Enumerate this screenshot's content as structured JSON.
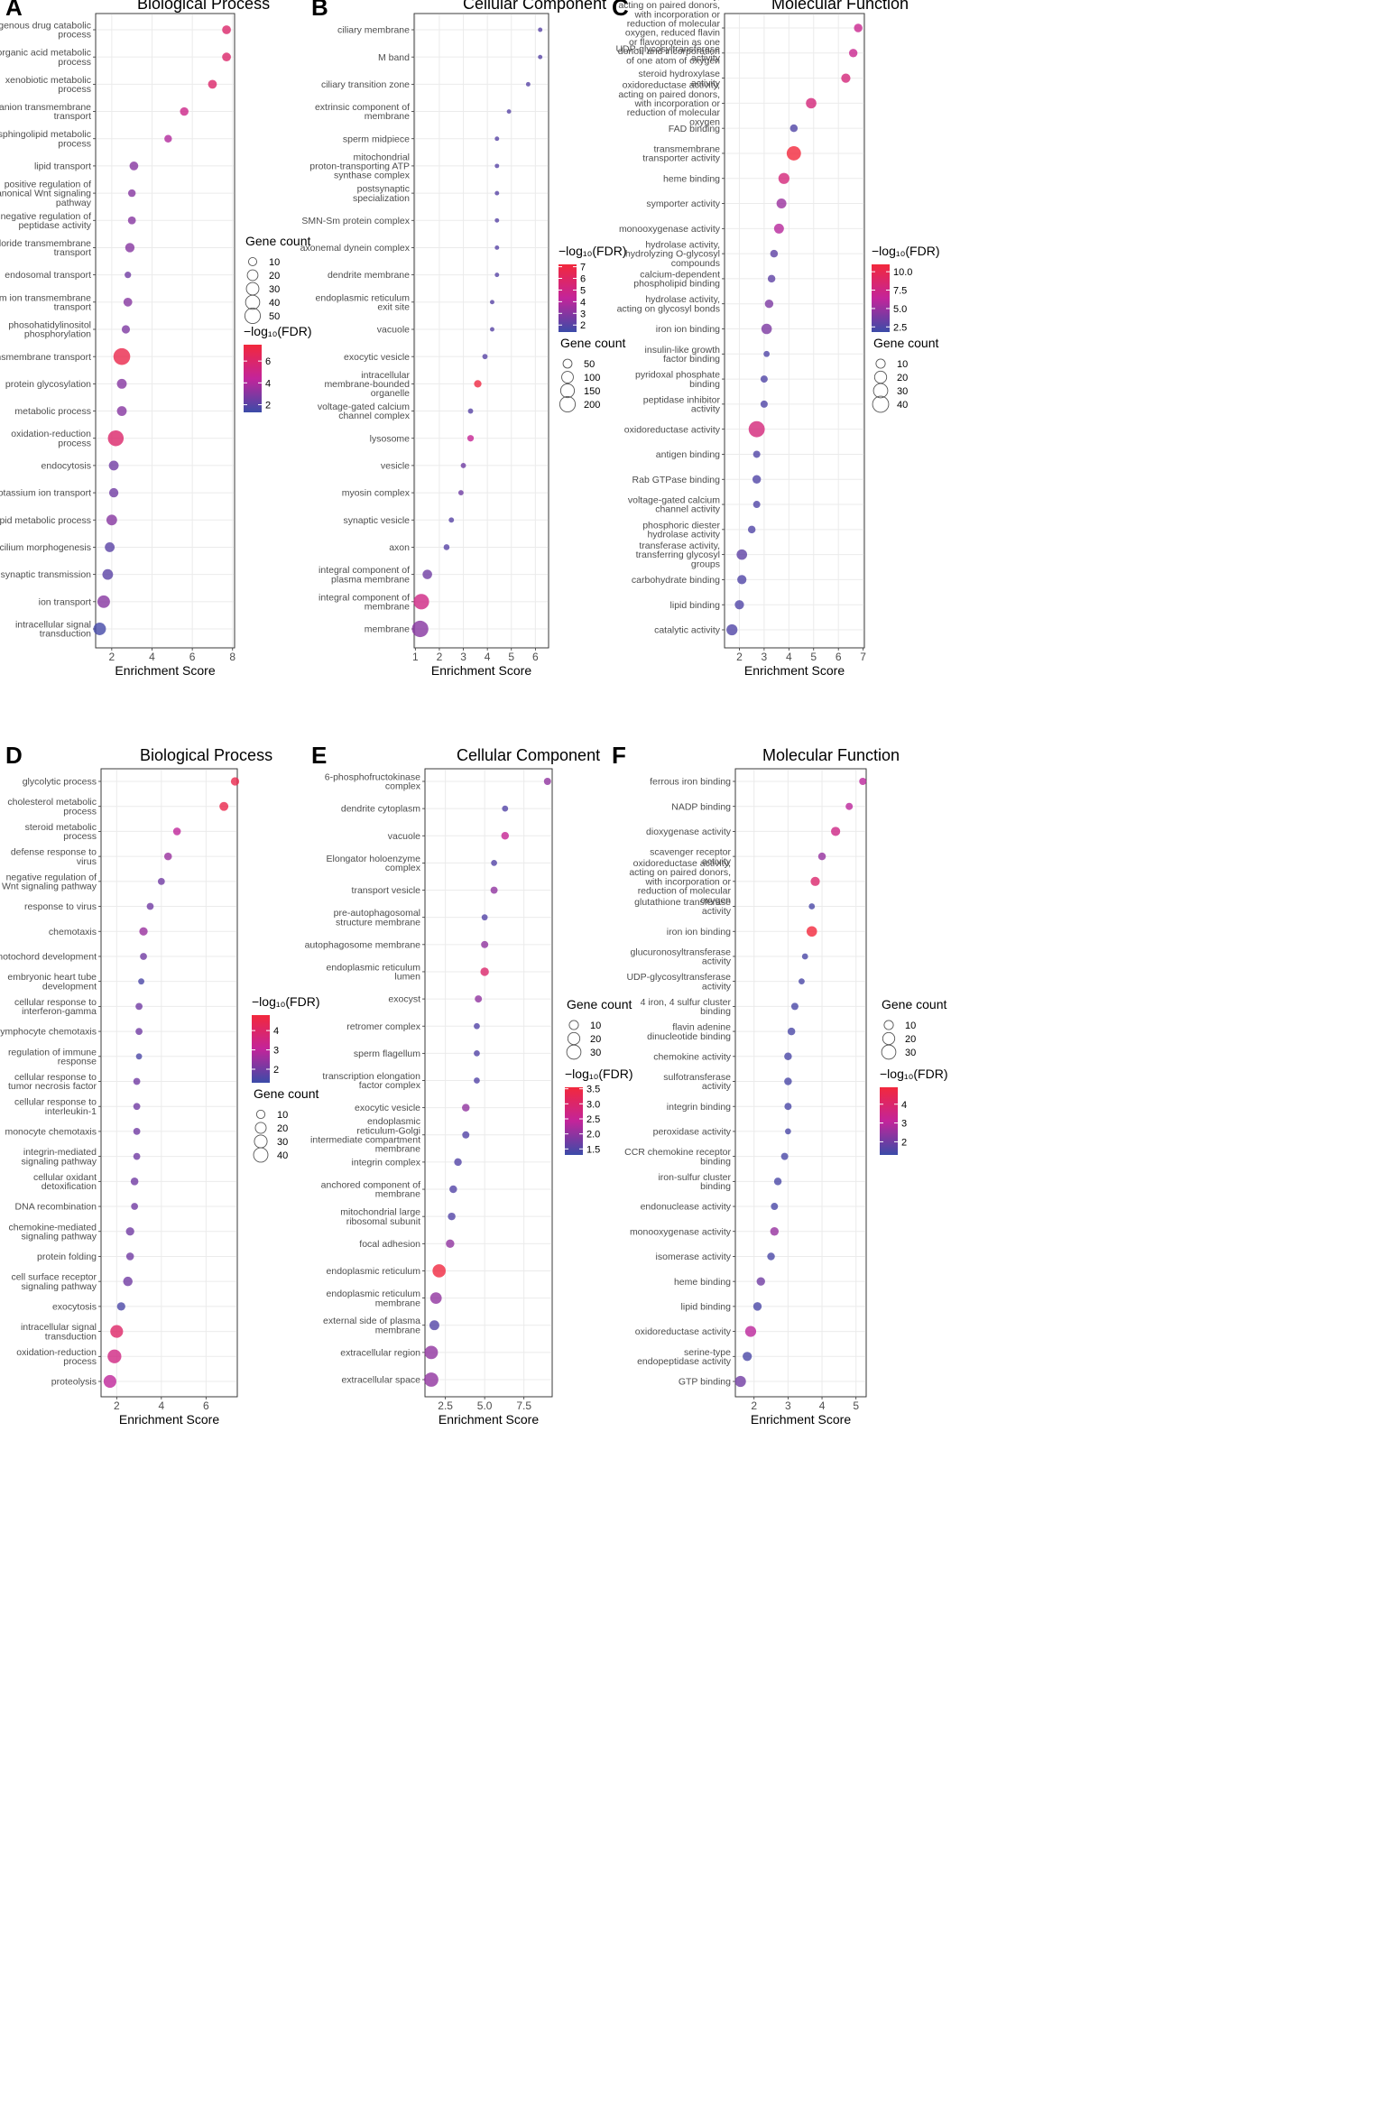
{
  "figure": {
    "colors": {
      "low": "#3b4ba8",
      "mid": "#c3249a",
      "high": "#f2283c",
      "grid": "#ebebeb",
      "frame": "#333333"
    }
  },
  "chart_data": [
    {
      "panel": "A",
      "title": "Biological Process",
      "type": "scatter",
      "xlabel": "Enrichment Score",
      "xlim": [
        1.2,
        8.1
      ],
      "xticks": [
        2,
        4,
        6,
        8
      ],
      "categories": [
        "exogenous drug catabolic process",
        "organic acid metabolic process",
        "xenobiotic metabolic process",
        "anion transmembrane transport",
        "sphingolipid metabolic process",
        "lipid transport",
        "positive regulation of canonical Wnt signaling pathway",
        "negative regulation of peptidase activity",
        "chloride transmembrane transport",
        "endosomal transport",
        "sodium ion transmembrane transport",
        "phosohatidylinositol phosphorylation",
        "transmembrane transport",
        "protein glycosylation",
        "metabolic process",
        "oxidation-reduction process",
        "endocytosis",
        "potassium ion transport",
        "lipid metabolic process",
        "cilium morphogenesis",
        "synaptic transmission",
        "ion transport",
        "intracellular signal transduction"
      ],
      "x": [
        7.7,
        7.7,
        7.0,
        5.6,
        4.8,
        3.1,
        3.0,
        3.0,
        2.9,
        2.8,
        2.8,
        2.7,
        2.5,
        2.5,
        2.5,
        2.2,
        2.1,
        2.1,
        2.0,
        1.9,
        1.8,
        1.6,
        1.4
      ],
      "count": [
        12,
        12,
        12,
        11,
        8,
        12,
        8,
        9,
        14,
        5,
        12,
        10,
        60,
        16,
        16,
        52,
        16,
        14,
        20,
        16,
        20,
        30,
        30
      ],
      "fdr": [
        6.0,
        6.0,
        6.0,
        5.0,
        4.0,
        3.0,
        3.0,
        3.0,
        3.0,
        2.5,
        3.0,
        2.8,
        7.0,
        3.0,
        3.0,
        6.0,
        2.5,
        2.5,
        3.0,
        2.0,
        2.0,
        3.0,
        1.5
      ],
      "fdr_lim": [
        1.3,
        7.5
      ],
      "legend": {
        "size_title": "Gene count",
        "size_values": [
          10,
          20,
          30,
          40,
          50
        ],
        "size_labels": [
          "10",
          "20",
          "30",
          "40",
          "50"
        ],
        "color_title": "−log₁₀(FDR)",
        "color_ticks": [
          2,
          4,
          6
        ],
        "color_labels": [
          "2",
          "4",
          "6"
        ],
        "order": "size-first"
      }
    },
    {
      "panel": "B",
      "title": "Cellular Component",
      "type": "scatter",
      "xlabel": "Enrichment Score",
      "xlim": [
        0.95,
        6.55
      ],
      "xticks": [
        1,
        2,
        3,
        4,
        5,
        6
      ],
      "categories": [
        "ciliary membrane",
        "M band",
        "ciliary transition zone",
        "extrinsic component of membrane",
        "sperm midpiece",
        "mitochondrial proton-transporting ATP synthase complex",
        "postsynaptic specialization",
        "SMN-Sm protein complex",
        "axonemal dynein complex",
        "dendrite membrane",
        "endoplasmic reticulum exit site",
        "vacuole",
        "exocytic vesicle",
        "intracellular membrane-bounded organelle",
        "voltage-gated calcium channel complex",
        "lysosome",
        "vesicle",
        "myosin complex",
        "synaptic vesicle",
        "axon",
        "integral component of plasma membrane",
        "integral component of membrane",
        "membrane"
      ],
      "x": [
        6.2,
        6.2,
        5.7,
        4.9,
        4.4,
        4.4,
        4.4,
        4.4,
        4.4,
        4.4,
        4.2,
        4.2,
        3.9,
        3.6,
        3.3,
        3.3,
        3.0,
        2.9,
        2.5,
        2.3,
        1.5,
        1.25,
        1.2
      ],
      "count": [
        5,
        5,
        5,
        5,
        5,
        5,
        5,
        5,
        5,
        5,
        5,
        5,
        10,
        30,
        10,
        20,
        10,
        10,
        10,
        15,
        60,
        200,
        230
      ],
      "fdr": [
        2.0,
        2.0,
        2.0,
        2.0,
        2.0,
        2.0,
        2.0,
        2.0,
        2.0,
        2.0,
        2.0,
        2.0,
        2.0,
        7.0,
        2.0,
        4.5,
        2.5,
        2.5,
        2.0,
        2.0,
        2.5,
        5.0,
        3.0
      ],
      "fdr_lim": [
        1.4,
        7.2
      ],
      "legend": {
        "size_title": "Gene count",
        "size_values": [
          50,
          100,
          150,
          200
        ],
        "size_labels": [
          "50",
          "100",
          "150",
          "200"
        ],
        "color_title": "−log₁₀(FDR)",
        "color_ticks": [
          2,
          3,
          4,
          5,
          6,
          7
        ],
        "color_labels": [
          "2",
          "3",
          "4",
          "5",
          "6",
          "7"
        ],
        "order": "color-first"
      }
    },
    {
      "panel": "C",
      "title": "Molecular Function",
      "type": "scatter",
      "xlabel": "Enrichment Score",
      "xlim": [
        1.4,
        7.05
      ],
      "xticks": [
        2,
        3,
        4,
        5,
        6,
        7
      ],
      "categories": [
        "oxidoreductase activity, acting on paired donors, with incorporation or reduction of molecular oxygen, reduced flavin or flavoprotein as one donor, and incorporation of one atom of oxygen",
        "UDP-glycosyltransferase activity",
        "steroid hydroxylase activity",
        "oxidoreductase activity, acting on paired donors, with incorporation or reduction of molecular oxygen",
        "FAD binding",
        "transmembrane transporter activity",
        "heme binding",
        "symporter activity",
        "monooxygenase activity",
        "hydrolase activity, hydrolyzing O-glycosyl compounds",
        "calcium-dependent phospholipid binding",
        "hydrolase activity, acting on glycosyl bonds",
        "iron ion binding",
        "insulin-like growth factor binding",
        "pyridoxal phosphate binding",
        "peptidase inhibitor activity",
        "oxidoreductase activity",
        "antigen binding",
        "Rab GTPase binding",
        "voltage-gated calcium channel activity",
        "phosphoric diester hydrolase activity",
        "transferase activity, transferring glycosyl groups",
        "carbohydrate binding",
        "lipid binding",
        "catalytic activity"
      ],
      "x": [
        6.8,
        6.6,
        6.3,
        4.9,
        4.2,
        4.2,
        3.8,
        3.7,
        3.6,
        3.4,
        3.3,
        3.2,
        3.1,
        3.1,
        3.0,
        3.0,
        2.7,
        2.7,
        2.7,
        2.7,
        2.5,
        2.1,
        2.1,
        2.0,
        1.7
      ],
      "count": [
        8,
        8,
        10,
        14,
        6,
        30,
        16,
        12,
        12,
        6,
        6,
        8,
        14,
        3,
        5,
        5,
        40,
        5,
        8,
        5,
        6,
        14,
        10,
        10,
        16
      ],
      "fdr": [
        7.0,
        7.0,
        8.0,
        8.0,
        2.5,
        11.0,
        8.0,
        5.0,
        6.0,
        3.0,
        3.0,
        4.0,
        4.0,
        2.5,
        2.5,
        2.5,
        8.0,
        2.5,
        2.5,
        2.5,
        2.5,
        3.0,
        2.5,
        2.5,
        2.5
      ],
      "fdr_lim": [
        1.8,
        11.0
      ],
      "legend": {
        "size_title": "Gene count",
        "size_values": [
          10,
          20,
          30,
          40
        ],
        "size_labels": [
          "10",
          "20",
          "30",
          "40"
        ],
        "color_title": "−log₁₀(FDR)",
        "color_ticks": [
          2.5,
          5,
          7.5,
          10
        ],
        "color_labels": [
          "2.5",
          "5.0",
          "7.5",
          "10.0"
        ],
        "order": "color-first"
      }
    },
    {
      "panel": "D",
      "title": "Biological Process",
      "type": "scatter",
      "xlabel": "Enrichment Score",
      "xlim": [
        1.3,
        7.4
      ],
      "xticks": [
        2,
        4,
        6
      ],
      "categories": [
        "glycolytic process",
        "cholesterol metabolic process",
        "steroid metabolic process",
        "defense response to virus",
        "negative regulation of Wnt signaling pathway",
        "response to virus",
        "chemotaxis",
        "notochord development",
        "embryonic heart tube development",
        "cellular response to interferon-gamma",
        "lymphocyte chemotaxis",
        "regulation of immune response",
        "cellular response to tumor necrosis factor",
        "cellular response to interleukin-1",
        "monocyte chemotaxis",
        "integrin-mediated signaling pathway",
        "cellular oxidant detoxification",
        "DNA recombination",
        "chemokine-mediated signaling pathway",
        "protein folding",
        "cell surface receptor signaling pathway",
        "exocytosis",
        "intracellular signal transduction",
        "oxidation-reduction process",
        "proteolysis"
      ],
      "x": [
        7.3,
        6.8,
        4.7,
        4.3,
        4.0,
        3.5,
        3.2,
        3.2,
        3.1,
        3.0,
        3.0,
        3.0,
        2.9,
        2.9,
        2.9,
        2.9,
        2.8,
        2.8,
        2.6,
        2.6,
        2.5,
        2.2,
        2.0,
        1.9,
        1.7
      ],
      "count": [
        10,
        12,
        8,
        8,
        6,
        6,
        10,
        6,
        4,
        6,
        6,
        4,
        6,
        6,
        6,
        6,
        8,
        6,
        10,
        8,
        14,
        10,
        30,
        36,
        30
      ],
      "fdr": [
        4.5,
        4.5,
        3.0,
        2.5,
        2.0,
        2.0,
        2.5,
        2.0,
        1.5,
        2.0,
        2.0,
        1.5,
        2.0,
        2.0,
        2.0,
        2.0,
        2.0,
        2.0,
        2.0,
        2.0,
        2.0,
        1.5,
        4.0,
        3.5,
        3.0
      ],
      "fdr_lim": [
        1.3,
        4.8
      ],
      "legend": {
        "size_title": "Gene count",
        "size_values": [
          10,
          20,
          30,
          40
        ],
        "size_labels": [
          "10",
          "20",
          "30",
          "40"
        ],
        "color_title": "−log₁₀(FDR)",
        "color_ticks": [
          2,
          3,
          4
        ],
        "color_labels": [
          "2",
          "3",
          "4"
        ],
        "order": "color-first"
      }
    },
    {
      "panel": "E",
      "title": "Cellular Component",
      "type": "scatter",
      "xlabel": "Enrichment Score",
      "xlim": [
        1.2,
        9.3
      ],
      "xticks": [
        2.5,
        5.0,
        7.5
      ],
      "categories": [
        "6-phosphofructokinase complex",
        "dendrite cytoplasm",
        "vacuole",
        "Elongator holoenzyme complex",
        "transport vesicle",
        "pre-autophagosomal structure membrane",
        "autophagosome membrane",
        "endoplasmic reticulum lumen",
        "exocyst",
        "retromer complex",
        "sperm flagellum",
        "transcription elongation factor complex",
        "exocytic vesicle",
        "endoplasmic reticulum-Golgi intermediate compartment membrane",
        "integrin complex",
        "anchored component of membrane",
        "mitochondrial large ribosomal subunit",
        "focal adhesion",
        "endoplasmic reticulum",
        "endoplasmic reticulum membrane",
        "external side of plasma membrane",
        "extracellular region",
        "extracellular space"
      ],
      "x": [
        9.0,
        6.3,
        6.3,
        5.6,
        5.6,
        5.0,
        5.0,
        5.0,
        4.6,
        4.5,
        4.5,
        4.5,
        3.8,
        3.8,
        3.3,
        3.0,
        2.9,
        2.8,
        2.1,
        1.9,
        1.8,
        1.6,
        1.6
      ],
      "count": [
        5,
        3,
        6,
        3,
        5,
        3,
        5,
        8,
        5,
        3,
        3,
        3,
        6,
        5,
        6,
        6,
        6,
        8,
        25,
        18,
        12,
        26,
        30
      ],
      "fdr": [
        2.0,
        1.5,
        2.5,
        1.5,
        2.0,
        1.5,
        2.0,
        3.0,
        2.0,
        1.5,
        1.5,
        1.5,
        2.0,
        1.5,
        1.5,
        1.5,
        1.5,
        2.0,
        3.5,
        2.0,
        1.5,
        2.0,
        2.0
      ],
      "fdr_lim": [
        1.3,
        3.55
      ],
      "legend": {
        "size_title": "Gene count",
        "size_values": [
          10,
          20,
          30
        ],
        "size_labels": [
          "10",
          "20",
          "30"
        ],
        "color_title": "−log₁₀(FDR)",
        "color_ticks": [
          1.5,
          2.0,
          2.5,
          3.0,
          3.5
        ],
        "color_labels": [
          "1.5",
          "2.0",
          "2.5",
          "3.0",
          "3.5"
        ],
        "order": "size-first"
      }
    },
    {
      "panel": "F",
      "title": "Molecular Function",
      "type": "scatter",
      "xlabel": "Enrichment Score",
      "xlim": [
        1.45,
        5.3
      ],
      "xticks": [
        2,
        3,
        4,
        5
      ],
      "categories": [
        "ferrous iron binding",
        "NADP binding",
        "dioxygenase activity",
        "scavenger receptor activity",
        "oxidoreductase activity, acting on paired donors, with incorporation or reduction of molecular oxygen",
        "glutathione transferase activity",
        "iron ion binding",
        "glucuronosyltransferase activity",
        "UDP-glycosyltransferase activity",
        "4 iron, 4 sulfur cluster binding",
        "flavin adenine dinucleotide binding",
        "chemokine activity",
        "sulfotransferase activity",
        "integrin binding",
        "peroxidase activity",
        "CCR chemokine receptor binding",
        "iron-sulfur cluster binding",
        "endonuclease activity",
        "monooxygenase activity",
        "isomerase activity",
        "heme binding",
        "lipid binding",
        "oxidoreductase activity",
        "serine-type endopeptidase activity",
        "GTP binding"
      ],
      "x": [
        5.2,
        4.8,
        4.4,
        4.0,
        3.8,
        3.7,
        3.7,
        3.5,
        3.4,
        3.2,
        3.1,
        3.0,
        3.0,
        3.0,
        3.0,
        2.9,
        2.7,
        2.6,
        2.6,
        2.5,
        2.2,
        2.1,
        1.9,
        1.8,
        1.6
      ],
      "count": [
        5,
        5,
        10,
        6,
        10,
        3,
        14,
        3,
        3,
        5,
        6,
        6,
        6,
        5,
        3,
        5,
        6,
        5,
        8,
        6,
        8,
        8,
        16,
        10,
        16
      ],
      "fdr": [
        3.0,
        3.0,
        3.5,
        2.5,
        4.0,
        1.5,
        5.0,
        1.5,
        1.5,
        1.5,
        1.5,
        1.5,
        1.5,
        1.5,
        1.5,
        1.5,
        1.5,
        1.5,
        2.5,
        1.5,
        2.0,
        1.5,
        3.0,
        1.5,
        2.0
      ],
      "fdr_lim": [
        1.3,
        4.9
      ],
      "legend": {
        "size_title": "Gene count",
        "size_values": [
          10,
          20,
          30
        ],
        "size_labels": [
          "10",
          "20",
          "30"
        ],
        "color_title": "−log₁₀(FDR)",
        "color_ticks": [
          2,
          3,
          4
        ],
        "color_labels": [
          "2",
          "3",
          "4"
        ],
        "order": "size-first"
      }
    }
  ]
}
